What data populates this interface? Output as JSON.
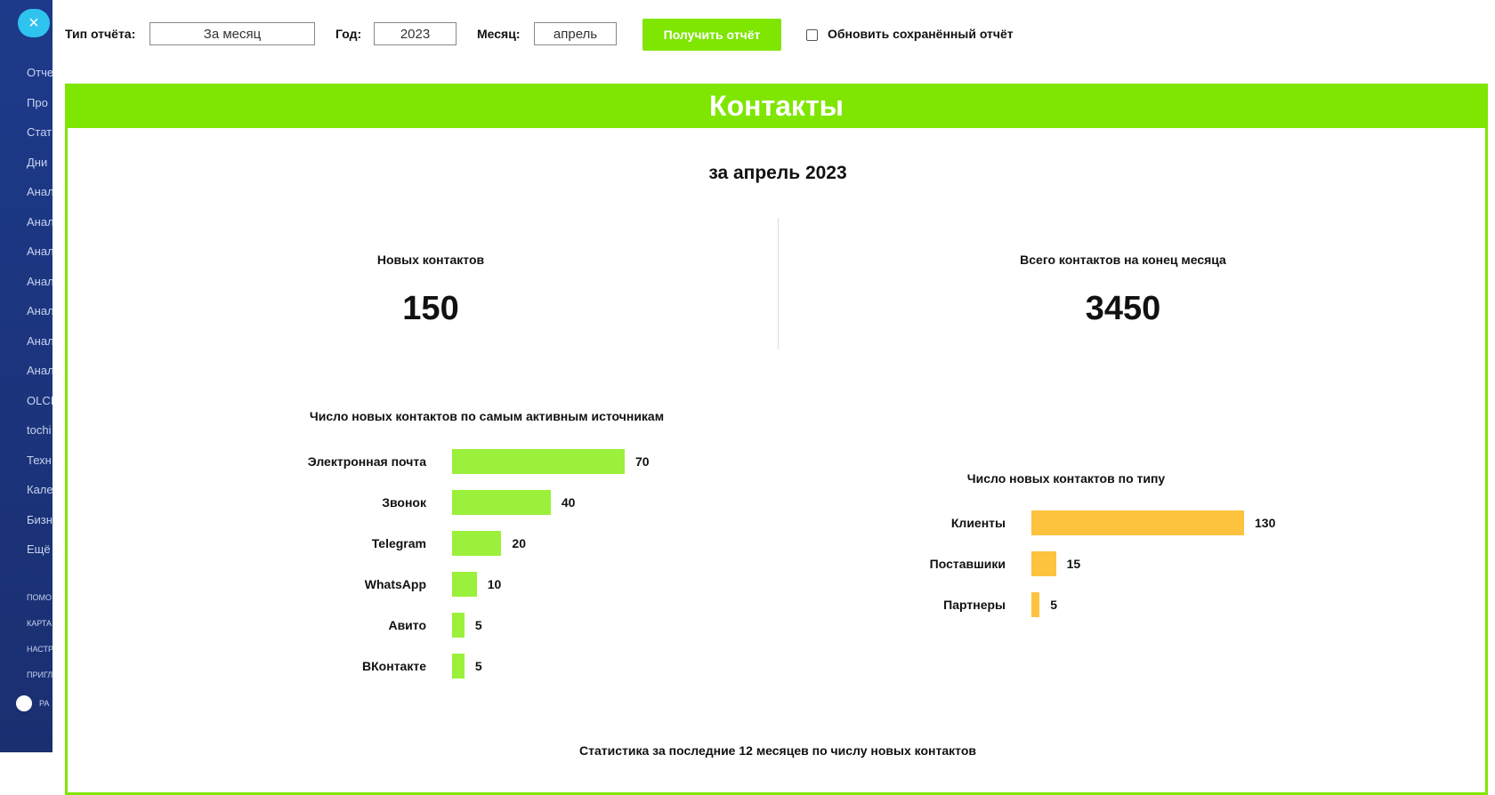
{
  "sidebar": {
    "items": [
      "Отче",
      "Про",
      "Стат",
      "Дни",
      "Анал",
      "Анал",
      "Анал",
      "Анал",
      "Анал",
      "Анал",
      "Анал",
      "OLCI",
      "tochi",
      "Техн",
      "Кале",
      "Бизн",
      "Ещё"
    ],
    "small_items": [
      "помо",
      "карта",
      "настр",
      "пригл"
    ],
    "footer": "РА"
  },
  "toolbar": {
    "report_type_label": "Тип отчёта:",
    "report_type_value": "За месяц",
    "year_label": "Год:",
    "year_value": "2023",
    "month_label": "Месяц:",
    "month_value": "апрель",
    "button": "Получить отчёт",
    "checkbox_label": "Обновить сохранённый отчёт"
  },
  "panel": {
    "title": "Контакты",
    "subtitle": "за апрель 2023",
    "kpis": [
      {
        "label": "Новых контактов",
        "value": "150"
      },
      {
        "label": "Всего контактов на конец месяца",
        "value": "3450"
      }
    ],
    "footer_text": "Статистика за последние 12 месяцев по числу новых контактов"
  },
  "chart_data": [
    {
      "type": "bar",
      "orientation": "horizontal",
      "title": "Число новых контактов по самым активным источникам",
      "categories": [
        "Электронная почта",
        "Звонок",
        "Telegram",
        "WhatsApp",
        "Авито",
        "ВКонтакте"
      ],
      "values": [
        70,
        40,
        20,
        10,
        5,
        5
      ],
      "color": "#9af03a"
    },
    {
      "type": "bar",
      "orientation": "horizontal",
      "title": "Число новых контактов по типу",
      "categories": [
        "Клиенты",
        "Поставшики",
        "Партнеры"
      ],
      "values": [
        130,
        15,
        5
      ],
      "color": "#fdc23e"
    }
  ]
}
